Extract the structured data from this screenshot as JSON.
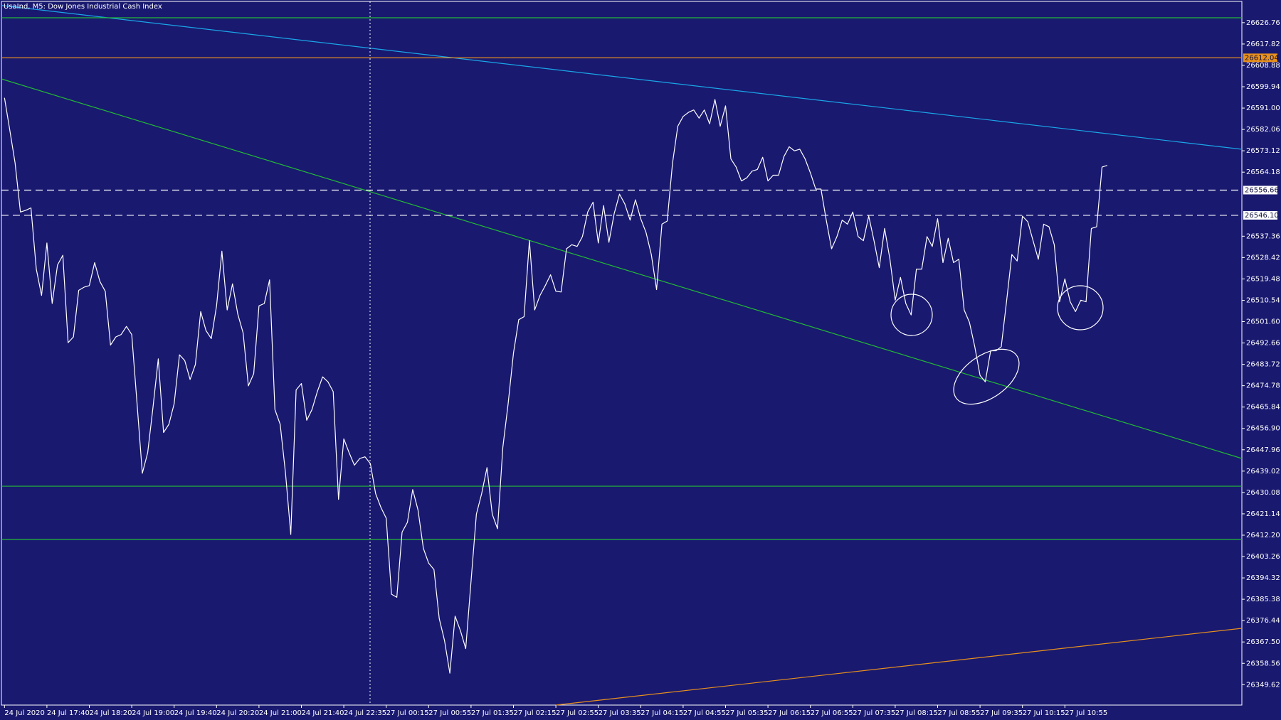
{
  "chart_data": {
    "type": "line",
    "title": "UsaInd, M5: Dow Jones Industrial Cash Index",
    "color": "#ffffff",
    "categories": [
      "24 Jul 2020",
      null,
      null,
      null,
      null,
      null,
      null,
      null,
      "24 Jul 17:40",
      null,
      null,
      null,
      null,
      null,
      null,
      null,
      "24 Jul 18:20",
      null,
      null,
      null,
      null,
      null,
      null,
      null,
      "24 Jul 19:00",
      null,
      null,
      null,
      null,
      null,
      null,
      null,
      "24 Jul 19:40",
      null,
      null,
      null,
      null,
      null,
      null,
      null,
      "24 Jul 20:20",
      null,
      null,
      null,
      null,
      null,
      null,
      null,
      "24 Jul 21:00",
      null,
      null,
      null,
      null,
      null,
      null,
      null,
      "24 Jul 21:40",
      null,
      null,
      null,
      null,
      null,
      null,
      null,
      "24 Jul 22:35",
      null,
      null,
      null,
      null,
      null,
      null,
      null,
      "27 Jul 00:15",
      null,
      null,
      null,
      null,
      null,
      null,
      null,
      "27 Jul 00:55",
      null,
      null,
      null,
      null,
      null,
      null,
      null,
      "27 Jul 01:35",
      null,
      null,
      null,
      null,
      null,
      null,
      null,
      "27 Jul 02:15",
      null,
      null,
      null,
      null,
      null,
      null,
      null,
      "27 Jul 02:55",
      null,
      null,
      null,
      null,
      null,
      null,
      null,
      "27 Jul 03:35",
      null,
      null,
      null,
      null,
      null,
      null,
      null,
      "27 Jul 04:15",
      null,
      null,
      null,
      null,
      null,
      null,
      null,
      "27 Jul 04:55",
      null,
      null,
      null,
      null,
      null,
      null,
      null,
      "27 Jul 05:35",
      null,
      null,
      null,
      null,
      null,
      null,
      null,
      "27 Jul 06:15",
      null,
      null,
      null,
      null,
      null,
      null,
      null,
      "27 Jul 06:55",
      null,
      null,
      null,
      null,
      null,
      null,
      null,
      "27 Jul 07:35",
      null,
      null,
      null,
      null,
      null,
      null,
      null,
      "27 Jul 08:15",
      null,
      null,
      null,
      null,
      null,
      null,
      null,
      "27 Jul 08:55",
      null,
      null,
      null,
      null,
      null,
      null,
      null,
      "27 Jul 09:35",
      null,
      null,
      null,
      null,
      null,
      null,
      null,
      "27 Jul 10:15",
      null,
      null,
      null,
      null,
      null,
      null,
      null,
      "27 Jul 10:55",
      null,
      null,
      null,
      null,
      null,
      null,
      null,
      null
    ],
    "values": [
      26595.3,
      26581.7,
      26568.0,
      26547.5,
      26548.2,
      26549.2,
      26523.6,
      26512.6,
      26534.5,
      26509.2,
      26525.3,
      26529.4,
      26492.8,
      26495.2,
      26514.7,
      26516.0,
      26516.7,
      26526.3,
      26518.4,
      26514.3,
      26491.8,
      26495.2,
      26496.2,
      26499.6,
      26496.2,
      26467.2,
      26438.1,
      26446.7,
      26465.5,
      26486.0,
      26455.2,
      26458.6,
      26467.2,
      26487.7,
      26485.3,
      26477.4,
      26483.6,
      26505.8,
      26497.9,
      26494.5,
      26508.2,
      26531.1,
      26506.5,
      26517.4,
      26504.8,
      26496.9,
      26474.7,
      26479.8,
      26508.2,
      26509.2,
      26519.1,
      26464.8,
      26458.6,
      26438.1,
      26412.5,
      26473.0,
      26475.7,
      26460.3,
      26464.8,
      26472.3,
      26478.5,
      26476.4,
      26472.3,
      26427.2,
      26452.5,
      26446.7,
      26441.5,
      26444.3,
      26445.0,
      26442.2,
      26429.6,
      26423.8,
      26419.3,
      26387.5,
      26386.2,
      26413.5,
      26417.6,
      26431.3,
      26422.7,
      26406.7,
      26400.5,
      26397.8,
      26377.3,
      26368.1,
      26354.4,
      26378.3,
      26372.2,
      26364.7,
      26393.0,
      26421.0,
      26429.6,
      26440.5,
      26421.0,
      26414.9,
      26449.1,
      26467.2,
      26488.4,
      26502.4,
      26503.7,
      26535.5,
      26506.5,
      26512.6,
      26516.7,
      26521.2,
      26514.3,
      26514.0,
      26532.1,
      26533.8,
      26533.1,
      26537.2,
      26547.5,
      26551.6,
      26534.5,
      26550.2,
      26534.8,
      26546.8,
      26555.0,
      26550.9,
      26544.1,
      26552.6,
      26544.7,
      26538.9,
      26529.7,
      26515.0,
      26542.4,
      26543.7,
      26568.0,
      26583.4,
      26587.5,
      26589.2,
      26590.2,
      26586.8,
      26590.2,
      26584.4,
      26594.6,
      26583.4,
      26591.9,
      26569.7,
      26566.3,
      26560.5,
      26561.8,
      26564.6,
      26565.3,
      26570.4,
      26560.5,
      26562.9,
      26562.9,
      26570.7,
      26574.8,
      26573.1,
      26573.8,
      26569.7,
      26563.9,
      26557.1,
      26557.1,
      26544.1,
      26532.1,
      26537.2,
      26544.1,
      26542.4,
      26547.5,
      26537.2,
      26535.5,
      26545.8,
      26535.5,
      26524.2,
      26540.6,
      26527.7,
      26510.6,
      26520.1,
      26509.2,
      26504.4,
      26523.6,
      26523.6,
      26537.2,
      26533.1,
      26544.7,
      26526.3,
      26536.5,
      26526.3,
      26527.7,
      26506.5,
      26501.3,
      26491.1,
      26479.1,
      26476.4,
      26489.4,
      26489.4,
      26491.1,
      26509.9,
      26529.7,
      26527.0,
      26545.8,
      26543.4,
      26535.5,
      26527.7,
      26542.4,
      26541.3,
      26533.8,
      26509.9,
      26519.5,
      26509.9,
      26505.8,
      26510.6,
      26509.9,
      26540.6,
      26541.3,
      26566.3,
      26567.0
    ],
    "ylim": [
      26341.08,
      26635.65
    ],
    "yticks": [
      26626.76,
      26617.82,
      26608.88,
      26599.94,
      {
        "value": 26591,
        "label": "26591.00"
      },
      26582.06,
      26573.12,
      26564.18,
      26537.36,
      26528.42,
      26519.48,
      26510.54,
      {
        "value": 26501.6,
        "label": "26501.60"
      },
      26492.66,
      26483.72,
      26474.78,
      26465.84,
      {
        "value": 26456.9,
        "label": "26456.90"
      },
      26447.96,
      26439.02,
      26430.08,
      26421.14,
      {
        "value": 26412.2,
        "label": "26412.20"
      },
      26403.26,
      26394.32,
      26385.38,
      26376.44,
      {
        "value": 26367.5,
        "label": "26367.50"
      },
      26358.56,
      26349.62
    ],
    "grid": false,
    "levels": [
      26628.8,
      26432.7,
      26410.4
    ],
    "level_color": "#22bb33",
    "tagged_levels": [
      26612.04,
      26556.66,
      {
        "value": 26546.1,
        "label": "26546.10"
      }
    ],
    "tagged_level_colors": [
      "#e8901c",
      "#ffffff",
      "#ffffff"
    ],
    "tagged_level_dashed": [
      false,
      true,
      true
    ]
  }
}
